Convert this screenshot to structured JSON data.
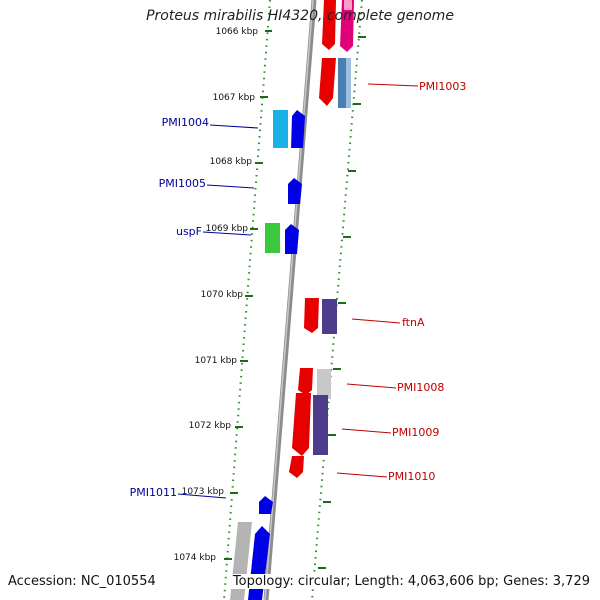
{
  "title": "Proteus mirabilis HI4320, complete genome",
  "accession_text": "Accession: NC_010554",
  "summary_text": "Topology: circular; Length: 4,063,606 bp; Genes: 3,729",
  "colors": {
    "forward_label": "#c00000",
    "reverse_label": "#00009a",
    "backbone": "#8c8c8c",
    "tick": "#1a6e1a"
  },
  "kbp_ticks": [
    "1066 kbp",
    "1067 kbp",
    "1068 kbp",
    "1069 kbp",
    "1070 kbp",
    "1071 kbp",
    "1072 kbp",
    "1073 kbp",
    "1074 kbp"
  ],
  "gene_labels": {
    "forward": [
      "PMI1003",
      "ftnA",
      "PMI1008",
      "PMI1009",
      "PMI1010"
    ],
    "reverse": [
      "PMI1004",
      "PMI1005",
      "uspF",
      "PMI1011"
    ]
  }
}
